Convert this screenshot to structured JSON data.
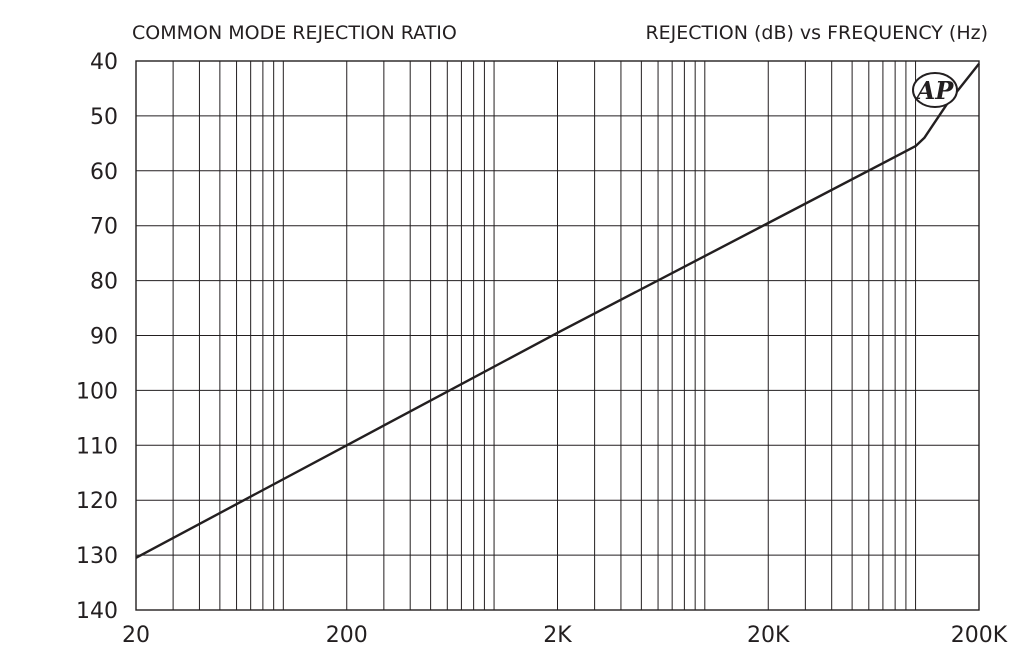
{
  "chart_data": {
    "type": "line",
    "title_left": "COMMON MODE REJECTION RATIO",
    "title_right": "REJECTION (dB) vs FREQUENCY (Hz)",
    "xscale": "log",
    "xlim": [
      20,
      200000
    ],
    "ylim": [
      40,
      140
    ],
    "y_inverted": true,
    "grid": true,
    "x_ticks": [
      {
        "value": 20,
        "label": "20"
      },
      {
        "value": 200,
        "label": "200"
      },
      {
        "value": 2000,
        "label": "2K"
      },
      {
        "value": 20000,
        "label": "20K"
      },
      {
        "value": 200000,
        "label": "200K"
      }
    ],
    "y_ticks": [
      {
        "value": 40,
        "label": "40"
      },
      {
        "value": 50,
        "label": "50"
      },
      {
        "value": 60,
        "label": "60"
      },
      {
        "value": 70,
        "label": "70"
      },
      {
        "value": 80,
        "label": "80"
      },
      {
        "value": 90,
        "label": "90"
      },
      {
        "value": 100,
        "label": "100"
      },
      {
        "value": 110,
        "label": "110"
      },
      {
        "value": 120,
        "label": "120"
      },
      {
        "value": 130,
        "label": "130"
      },
      {
        "value": 140,
        "label": "140"
      }
    ],
    "series": [
      {
        "x": [
          20,
          200,
          2000,
          20000,
          100000,
          110000,
          140000,
          200000
        ],
        "y": [
          130.5,
          110,
          89.5,
          69.5,
          55.5,
          54,
          48,
          40.5
        ]
      }
    ],
    "logo_text": "AP"
  }
}
